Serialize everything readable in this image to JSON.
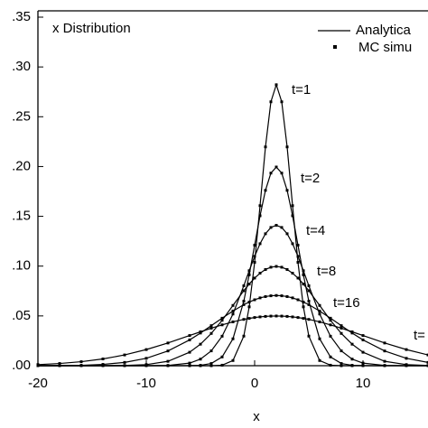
{
  "chart_data": {
    "type": "line",
    "annotation": "x Distribution",
    "x_label": "x",
    "x": [
      -20,
      -18,
      -16,
      -14,
      -12,
      -10,
      -8,
      -6,
      -5,
      -4,
      -3,
      -2,
      -1,
      -0.5,
      0,
      0.5,
      1,
      1.5,
      2,
      2.5,
      3,
      3.5,
      4,
      4.5,
      5,
      6,
      7,
      8,
      9,
      10,
      12,
      14,
      16
    ],
    "series": [
      {
        "name": "t=1",
        "color": "#000000",
        "values": [
          0,
          0,
          0,
          0,
          0,
          0,
          0,
          0,
          0,
          0,
          0.0005,
          0.0052,
          0.0297,
          0.0591,
          0.1038,
          0.1607,
          0.2197,
          0.265,
          0.2821,
          0.265,
          0.2197,
          0.1607,
          0.1038,
          0.0591,
          0.0297,
          0.0052,
          0.0005,
          0,
          0,
          0,
          0,
          0,
          0
        ]
      },
      {
        "name": "t=2",
        "color": "#000000",
        "values": [
          0,
          0,
          0,
          0,
          0,
          0,
          0,
          0.0001,
          0.0004,
          0.0022,
          0.0088,
          0.027,
          0.0648,
          0.0913,
          0.121,
          0.1506,
          0.1761,
          0.1934,
          0.1995,
          0.1934,
          0.1761,
          0.1506,
          0.121,
          0.0913,
          0.0648,
          0.027,
          0.0088,
          0.0022,
          0.0004,
          0.0001,
          0,
          0,
          0
        ]
      },
      {
        "name": "t=4",
        "color": "#000000",
        "values": [
          0,
          0,
          0,
          0,
          0,
          0,
          0.0003,
          0.0026,
          0.0066,
          0.0149,
          0.0296,
          0.0519,
          0.0803,
          0.0954,
          0.1098,
          0.1225,
          0.1325,
          0.1388,
          0.141,
          0.1388,
          0.1325,
          0.1225,
          0.1098,
          0.0954,
          0.0803,
          0.0519,
          0.0296,
          0.0149,
          0.0066,
          0.0026,
          0.0003,
          0,
          0
        ]
      },
      {
        "name": "t=8",
        "color": "#000000",
        "values": [
          0,
          0,
          0,
          0,
          0.0002,
          0.0011,
          0.0044,
          0.0135,
          0.0216,
          0.0324,
          0.0456,
          0.0605,
          0.0753,
          0.082,
          0.088,
          0.0929,
          0.0966,
          0.0989,
          0.0997,
          0.0989,
          0.0966,
          0.0929,
          0.088,
          0.082,
          0.0753,
          0.0605,
          0.0456,
          0.0324,
          0.0216,
          0.0135,
          0.0044,
          0.0011,
          0.0002
        ]
      },
      {
        "name": "t=16",
        "color": "#000000",
        "values": [
          0,
          0.0001,
          0.0004,
          0.0013,
          0.0033,
          0.0074,
          0.0148,
          0.0259,
          0.0328,
          0.0402,
          0.0477,
          0.0549,
          0.0613,
          0.0639,
          0.0662,
          0.0681,
          0.0694,
          0.0702,
          0.0705,
          0.0702,
          0.0694,
          0.0681,
          0.0662,
          0.0639,
          0.0613,
          0.0549,
          0.0477,
          0.0402,
          0.0328,
          0.0259,
          0.0148,
          0.0074,
          0.0033
        ]
      },
      {
        "name": "t=",
        "color": "#000000",
        "values": [
          0.0011,
          0.0022,
          0.004,
          0.0068,
          0.0108,
          0.0162,
          0.0228,
          0.0303,
          0.034,
          0.0377,
          0.041,
          0.044,
          0.0465,
          0.0475,
          0.0484,
          0.049,
          0.0495,
          0.0498,
          0.0499,
          0.0498,
          0.0495,
          0.049,
          0.0484,
          0.0475,
          0.0465,
          0.044,
          0.041,
          0.0377,
          0.034,
          0.0303,
          0.0228,
          0.0162,
          0.0108
        ]
      }
    ],
    "legend": {
      "labels": [
        "Analytica",
        "MC simu"
      ],
      "position": "upper right"
    },
    "xlim": [
      -20,
      16
    ],
    "ylim": [
      0,
      0.35
    ],
    "xticks": [
      -20,
      -10,
      0,
      10
    ],
    "yticks": [
      {
        "value": 0,
        "label": ".00"
      },
      {
        "value": 0.05,
        "label": ".05"
      },
      {
        "value": 0.1,
        "label": ".10"
      },
      {
        "value": 0.15,
        "label": ".15"
      },
      {
        "value": 0.2,
        "label": ".20"
      },
      {
        "value": 0.25,
        "label": ".25"
      },
      {
        "value": 0.3,
        "label": ".30"
      },
      {
        "value": 0.35,
        "label": ".35"
      }
    ],
    "grid": false
  }
}
